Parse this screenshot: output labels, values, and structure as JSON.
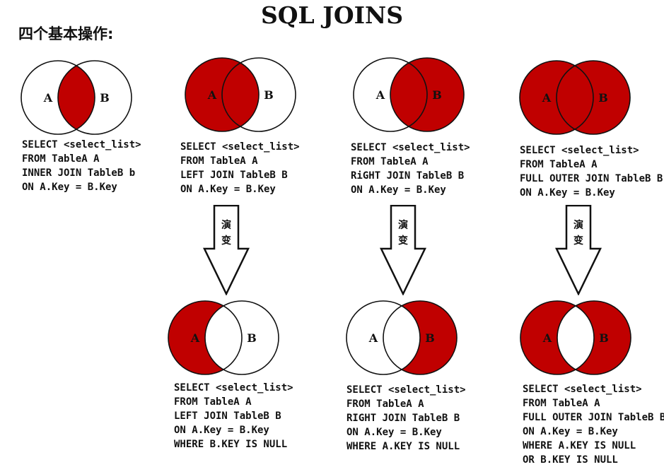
{
  "title": "SQL JOINS",
  "subtitle": "四个基本操作:",
  "colors": {
    "fill": "#c00000",
    "stroke": "#111111",
    "background": "#ffffff"
  },
  "circle_labels": {
    "a": "A",
    "b": "B"
  },
  "arrow_text": [
    "演",
    "变"
  ],
  "joins": [
    {
      "id": "inner",
      "shade": "intersection",
      "sql": [
        "SELECT <select_list>",
        "FROM TableA A",
        "INNER JOIN TableB b",
        "ON A.Key = B.Key"
      ]
    },
    {
      "id": "left",
      "shade": "left",
      "sql": [
        "SELECT <select_list>",
        "FROM TableA A",
        "LEFT JOIN TableB B",
        "ON A.Key = B.Key"
      ]
    },
    {
      "id": "right",
      "shade": "right",
      "sql": [
        "SELECT <select_list>",
        "FROM TableA A",
        "RiGHT JOIN TableB B",
        "ON A.Key = B.Key"
      ]
    },
    {
      "id": "full",
      "shade": "both",
      "sql": [
        "SELECT <select_list>",
        "FROM TableA A",
        "FULL OUTER JOIN TableB B",
        "ON A.Key = B.Key"
      ]
    },
    {
      "id": "left-excluding",
      "shade": "left-only",
      "sql": [
        "SELECT <select_list>",
        "FROM TableA A",
        "LEFT JOIN TableB B",
        "ON A.Key = B.Key",
        "WHERE B.KEY IS NULL"
      ]
    },
    {
      "id": "right-excluding",
      "shade": "right-only",
      "sql": [
        "SELECT <select_list>",
        "FROM TableA A",
        "RIGHT JOIN TableB B",
        "ON A.Key = B.Key",
        "WHERE A.KEY IS NULL"
      ]
    },
    {
      "id": "outer-excluding",
      "shade": "xor",
      "sql": [
        "SELECT <select_list>",
        "FROM TableA A",
        "FULL OUTER JOIN TableB B",
        "ON A.Key = B.Key",
        "WHERE A.KEY IS NULL",
        "OR B.KEY IS NULL"
      ]
    }
  ]
}
